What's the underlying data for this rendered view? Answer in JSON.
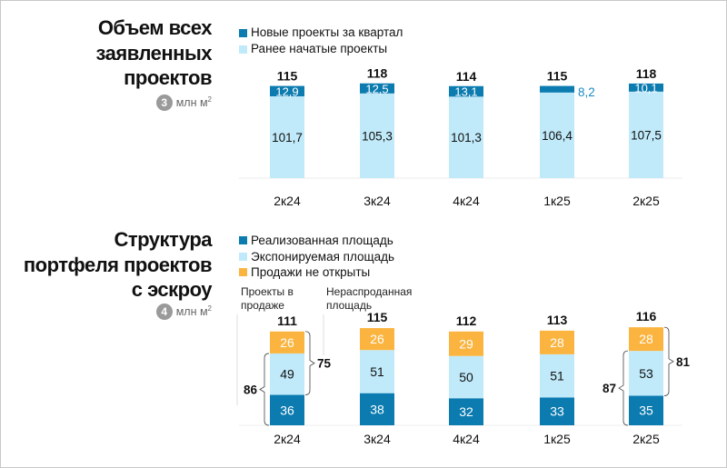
{
  "colors": {
    "new": "#0b7bb0",
    "prev": "#c0eafa",
    "realized": "#0b7bb0",
    "exposed": "#c0eafa",
    "not_open": "#fbb43f",
    "label_out": "#1a8cc4"
  },
  "chart_data": [
    {
      "type": "bar",
      "stacked": true,
      "title_lines": [
        "Объем всех",
        "заявленных",
        "проектов"
      ],
      "badge": "3",
      "unit": "млн м",
      "unit_sup": "2",
      "categories": [
        "2к24",
        "3к24",
        "4к24",
        "1к25",
        "2к25"
      ],
      "series": [
        {
          "name": "Ранее начатые проекты",
          "values": [
            "101,7",
            "105,3",
            "101,3",
            "106,4",
            "107,5"
          ],
          "num": [
            101.7,
            105.3,
            101.3,
            106.4,
            107.5
          ]
        },
        {
          "name": "Новые проекты за квартал",
          "values": [
            "12,9",
            "12,5",
            "13,1",
            "8,2",
            "10,1"
          ],
          "num": [
            12.9,
            12.5,
            13.1,
            8.2,
            10.1
          ]
        }
      ],
      "totals": [
        "115",
        "118",
        "114",
        "115",
        "118"
      ],
      "legend": [
        "Новые проекты за квартал",
        "Ранее начатые проекты"
      ],
      "legend_position": "top-left"
    },
    {
      "type": "bar",
      "stacked": true,
      "title_lines": [
        "Структура",
        "портфеля проектов",
        "с эскроу"
      ],
      "badge": "4",
      "unit": "млн м",
      "unit_sup": "2",
      "categories": [
        "2к24",
        "3к24",
        "4к24",
        "1к25",
        "2к25"
      ],
      "series": [
        {
          "name": "Реализованная площадь",
          "values": [
            "36",
            "38",
            "32",
            "33",
            "35"
          ],
          "num": [
            36,
            38,
            32,
            33,
            35
          ]
        },
        {
          "name": "Экспонируемая площадь",
          "values": [
            "49",
            "51",
            "50",
            "51",
            "53"
          ],
          "num": [
            49,
            51,
            50,
            51,
            53
          ]
        },
        {
          "name": "Продажи не открыты",
          "values": [
            "26",
            "26",
            "29",
            "28",
            "28"
          ],
          "num": [
            26,
            26,
            29,
            28,
            28
          ]
        }
      ],
      "totals": [
        "111",
        "115",
        "112",
        "113",
        "116"
      ],
      "legend": [
        "Реализованная площадь",
        "Экспонируемая площадь",
        "Продажи не открыты"
      ],
      "annotations": {
        "in_sale": "Проекты в продаже",
        "unsold": "Нераспроданная площадь",
        "brackets": [
          {
            "category": "2к24",
            "in_sale": "86",
            "unsold": "75"
          },
          {
            "category": "2к25",
            "in_sale": "87",
            "unsold": "81"
          }
        ]
      },
      "legend_position": "top-left"
    }
  ]
}
